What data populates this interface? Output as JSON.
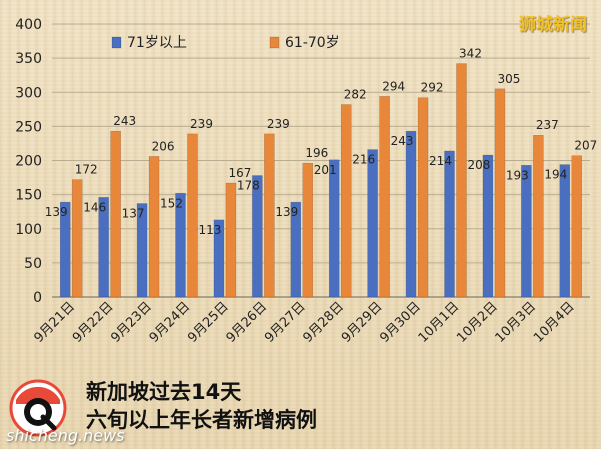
{
  "watermark": "狮城新闻",
  "caption": {
    "line1": "新加坡过去14天",
    "line2": "六旬以上年长者新增病例"
  },
  "site_mark": "shicheng.news",
  "colors": {
    "blue": "#4a6fc0",
    "orange": "#e8873a",
    "grid": "#b9ad92",
    "axis": "#6e6a5e"
  },
  "chart_data": {
    "type": "bar",
    "categories": [
      "9月21日",
      "9月22日",
      "9月23日",
      "9月24日",
      "9月25日",
      "9月26日",
      "9月27日",
      "9月28日",
      "9月29日",
      "9月30日",
      "10月1日",
      "10月2日",
      "10月3日",
      "10月4日"
    ],
    "series": [
      {
        "name": "71岁以上",
        "color": "#4a6fc0",
        "values": [
          139,
          146,
          137,
          152,
          113,
          178,
          139,
          201,
          216,
          243,
          214,
          208,
          193,
          194
        ]
      },
      {
        "name": "61-70岁",
        "color": "#e8873a",
        "values": [
          172,
          243,
          206,
          239,
          167,
          239,
          196,
          282,
          294,
          292,
          342,
          305,
          237,
          207
        ]
      }
    ],
    "ylim": [
      0,
      400
    ],
    "yticks": [
      0,
      50,
      100,
      150,
      200,
      250,
      300,
      350,
      400
    ],
    "grid": true,
    "legend": "top-left",
    "data_labels": true
  }
}
